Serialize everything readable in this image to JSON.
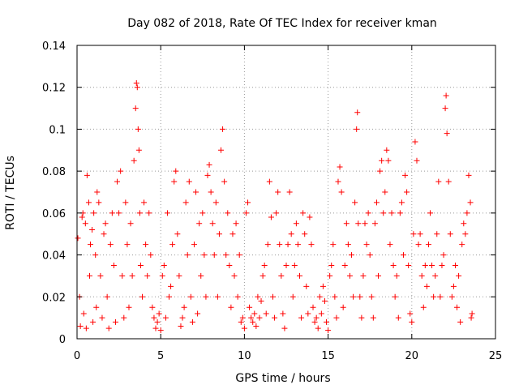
{
  "chart_data": {
    "type": "scatter",
    "title": "Day 082 of 2018, Rate Of TEC Index for receiver kman",
    "xlabel": "GPS time / hours",
    "ylabel": "ROTI / TECUs",
    "xlim": [
      0,
      25
    ],
    "ylim": [
      0,
      0.14
    ],
    "x_ticks": [
      0,
      5,
      10,
      15,
      20,
      25
    ],
    "x_tick_labels": [
      "0",
      "5",
      "10",
      "15",
      "20",
      "25"
    ],
    "y_ticks": [
      0,
      0.02,
      0.04,
      0.06,
      0.08,
      0.1,
      0.12,
      0.14
    ],
    "y_tick_labels": [
      "0",
      "0.02",
      "0.04",
      "0.06",
      "0.08",
      "0.1",
      "0.12",
      "0.14"
    ],
    "grid": true,
    "marker": "+",
    "series": [
      {
        "name": "ROTI",
        "color": "#ff0000",
        "points": [
          [
            0.05,
            0.048
          ],
          [
            0.15,
            0.02
          ],
          [
            0.2,
            0.006
          ],
          [
            0.3,
            0.058
          ],
          [
            0.35,
            0.06
          ],
          [
            0.4,
            0.012
          ],
          [
            0.5,
            0.055
          ],
          [
            0.55,
            0.005
          ],
          [
            0.6,
            0.078
          ],
          [
            0.7,
            0.065
          ],
          [
            0.75,
            0.03
          ],
          [
            0.8,
            0.045
          ],
          [
            0.9,
            0.052
          ],
          [
            0.95,
            0.008
          ],
          [
            1.0,
            0.06
          ],
          [
            1.1,
            0.04
          ],
          [
            1.15,
            0.015
          ],
          [
            1.2,
            0.07
          ],
          [
            1.3,
            0.065
          ],
          [
            1.4,
            0.03
          ],
          [
            1.5,
            0.01
          ],
          [
            1.6,
            0.05
          ],
          [
            1.7,
            0.055
          ],
          [
            1.8,
            0.02
          ],
          [
            1.9,
            0.005
          ],
          [
            2.0,
            0.045
          ],
          [
            2.1,
            0.06
          ],
          [
            2.2,
            0.035
          ],
          [
            2.3,
            0.008
          ],
          [
            2.4,
            0.075
          ],
          [
            2.5,
            0.06
          ],
          [
            2.6,
            0.08
          ],
          [
            2.7,
            0.03
          ],
          [
            2.8,
            0.01
          ],
          [
            2.9,
            0.065
          ],
          [
            3.0,
            0.045
          ],
          [
            3.1,
            0.015
          ],
          [
            3.2,
            0.055
          ],
          [
            3.3,
            0.03
          ],
          [
            3.4,
            0.085
          ],
          [
            3.5,
            0.11
          ],
          [
            3.55,
            0.122
          ],
          [
            3.6,
            0.12
          ],
          [
            3.65,
            0.1
          ],
          [
            3.7,
            0.09
          ],
          [
            3.75,
            0.06
          ],
          [
            3.8,
            0.035
          ],
          [
            3.9,
            0.02
          ],
          [
            4.0,
            0.065
          ],
          [
            4.1,
            0.045
          ],
          [
            4.2,
            0.03
          ],
          [
            4.3,
            0.06
          ],
          [
            4.4,
            0.04
          ],
          [
            4.5,
            0.015
          ],
          [
            4.6,
            0.01
          ],
          [
            4.7,
            0.005
          ],
          [
            4.8,
            0.008
          ],
          [
            4.9,
            0.012
          ],
          [
            5.0,
            0.004
          ],
          [
            5.1,
            0.03
          ],
          [
            5.2,
            0.035
          ],
          [
            5.3,
            0.01
          ],
          [
            5.4,
            0.06
          ],
          [
            5.5,
            0.02
          ],
          [
            5.6,
            0.025
          ],
          [
            5.7,
            0.045
          ],
          [
            5.8,
            0.075
          ],
          [
            5.9,
            0.08
          ],
          [
            6.0,
            0.05
          ],
          [
            6.1,
            0.03
          ],
          [
            6.2,
            0.006
          ],
          [
            6.3,
            0.01
          ],
          [
            6.4,
            0.015
          ],
          [
            6.5,
            0.065
          ],
          [
            6.6,
            0.04
          ],
          [
            6.7,
            0.075
          ],
          [
            6.8,
            0.02
          ],
          [
            6.9,
            0.008
          ],
          [
            7.0,
            0.045
          ],
          [
            7.1,
            0.07
          ],
          [
            7.2,
            0.012
          ],
          [
            7.3,
            0.055
          ],
          [
            7.4,
            0.03
          ],
          [
            7.5,
            0.06
          ],
          [
            7.6,
            0.04
          ],
          [
            7.7,
            0.02
          ],
          [
            7.8,
            0.078
          ],
          [
            7.9,
            0.083
          ],
          [
            8.0,
            0.07
          ],
          [
            8.1,
            0.055
          ],
          [
            8.2,
            0.04
          ],
          [
            8.3,
            0.065
          ],
          [
            8.4,
            0.02
          ],
          [
            8.5,
            0.05
          ],
          [
            8.6,
            0.09
          ],
          [
            8.7,
            0.1
          ],
          [
            8.8,
            0.075
          ],
          [
            8.9,
            0.04
          ],
          [
            9.0,
            0.06
          ],
          [
            9.1,
            0.035
          ],
          [
            9.2,
            0.015
          ],
          [
            9.3,
            0.05
          ],
          [
            9.4,
            0.03
          ],
          [
            9.5,
            0.055
          ],
          [
            9.6,
            0.02
          ],
          [
            9.7,
            0.04
          ],
          [
            9.8,
            0.008
          ],
          [
            9.9,
            0.01
          ],
          [
            10.0,
            0.005
          ],
          [
            10.1,
            0.06
          ],
          [
            10.2,
            0.065
          ],
          [
            10.3,
            0.015
          ],
          [
            10.4,
            0.01
          ],
          [
            10.5,
            0.008
          ],
          [
            10.6,
            0.012
          ],
          [
            10.7,
            0.006
          ],
          [
            10.8,
            0.02
          ],
          [
            10.9,
            0.01
          ],
          [
            11.0,
            0.018
          ],
          [
            11.1,
            0.03
          ],
          [
            11.2,
            0.035
          ],
          [
            11.3,
            0.012
          ],
          [
            11.4,
            0.045
          ],
          [
            11.5,
            0.075
          ],
          [
            11.6,
            0.058
          ],
          [
            11.7,
            0.02
          ],
          [
            11.8,
            0.01
          ],
          [
            11.9,
            0.06
          ],
          [
            12.0,
            0.07
          ],
          [
            12.1,
            0.045
          ],
          [
            12.2,
            0.03
          ],
          [
            12.3,
            0.012
          ],
          [
            12.4,
            0.005
          ],
          [
            12.5,
            0.035
          ],
          [
            12.6,
            0.045
          ],
          [
            12.7,
            0.07
          ],
          [
            12.8,
            0.05
          ],
          [
            12.9,
            0.02
          ],
          [
            13.0,
            0.035
          ],
          [
            13.1,
            0.055
          ],
          [
            13.2,
            0.045
          ],
          [
            13.3,
            0.03
          ],
          [
            13.4,
            0.01
          ],
          [
            13.5,
            0.06
          ],
          [
            13.6,
            0.05
          ],
          [
            13.7,
            0.025
          ],
          [
            13.8,
            0.012
          ],
          [
            13.9,
            0.058
          ],
          [
            14.0,
            0.045
          ],
          [
            14.1,
            0.015
          ],
          [
            14.2,
            0.008
          ],
          [
            14.3,
            0.01
          ],
          [
            14.4,
            0.005
          ],
          [
            14.5,
            0.02
          ],
          [
            14.6,
            0.012
          ],
          [
            14.7,
            0.025
          ],
          [
            14.8,
            0.018
          ],
          [
            14.9,
            0.008
          ],
          [
            15.0,
            0.004
          ],
          [
            15.1,
            0.03
          ],
          [
            15.2,
            0.035
          ],
          [
            15.3,
            0.045
          ],
          [
            15.4,
            0.02
          ],
          [
            15.5,
            0.01
          ],
          [
            15.6,
            0.075
          ],
          [
            15.7,
            0.082
          ],
          [
            15.8,
            0.07
          ],
          [
            15.9,
            0.015
          ],
          [
            16.0,
            0.035
          ],
          [
            16.1,
            0.055
          ],
          [
            16.2,
            0.045
          ],
          [
            16.3,
            0.03
          ],
          [
            16.4,
            0.04
          ],
          [
            16.5,
            0.02
          ],
          [
            16.6,
            0.065
          ],
          [
            16.7,
            0.1
          ],
          [
            16.75,
            0.108
          ],
          [
            16.8,
            0.055
          ],
          [
            16.9,
            0.02
          ],
          [
            17.0,
            0.01
          ],
          [
            17.1,
            0.03
          ],
          [
            17.2,
            0.055
          ],
          [
            17.3,
            0.045
          ],
          [
            17.4,
            0.06
          ],
          [
            17.5,
            0.04
          ],
          [
            17.6,
            0.02
          ],
          [
            17.7,
            0.01
          ],
          [
            17.8,
            0.055
          ],
          [
            17.9,
            0.065
          ],
          [
            18.0,
            0.03
          ],
          [
            18.1,
            0.08
          ],
          [
            18.2,
            0.085
          ],
          [
            18.3,
            0.06
          ],
          [
            18.4,
            0.07
          ],
          [
            18.5,
            0.09
          ],
          [
            18.6,
            0.085
          ],
          [
            18.7,
            0.045
          ],
          [
            18.8,
            0.06
          ],
          [
            18.9,
            0.035
          ],
          [
            19.0,
            0.02
          ],
          [
            19.1,
            0.03
          ],
          [
            19.2,
            0.01
          ],
          [
            19.3,
            0.06
          ],
          [
            19.4,
            0.065
          ],
          [
            19.5,
            0.04
          ],
          [
            19.6,
            0.078
          ],
          [
            19.7,
            0.07
          ],
          [
            19.8,
            0.035
          ],
          [
            19.9,
            0.012
          ],
          [
            20.0,
            0.008
          ],
          [
            20.1,
            0.05
          ],
          [
            20.2,
            0.094
          ],
          [
            20.3,
            0.085
          ],
          [
            20.4,
            0.045
          ],
          [
            20.5,
            0.05
          ],
          [
            20.6,
            0.03
          ],
          [
            20.7,
            0.015
          ],
          [
            20.8,
            0.035
          ],
          [
            20.9,
            0.025
          ],
          [
            21.0,
            0.045
          ],
          [
            21.1,
            0.06
          ],
          [
            21.2,
            0.035
          ],
          [
            21.3,
            0.02
          ],
          [
            21.4,
            0.03
          ],
          [
            21.5,
            0.05
          ],
          [
            21.6,
            0.075
          ],
          [
            21.7,
            0.02
          ],
          [
            21.8,
            0.035
          ],
          [
            21.9,
            0.04
          ],
          [
            22.0,
            0.11
          ],
          [
            22.05,
            0.116
          ],
          [
            22.1,
            0.098
          ],
          [
            22.2,
            0.075
          ],
          [
            22.3,
            0.05
          ],
          [
            22.4,
            0.02
          ],
          [
            22.5,
            0.025
          ],
          [
            22.6,
            0.035
          ],
          [
            22.7,
            0.015
          ],
          [
            22.8,
            0.03
          ],
          [
            22.9,
            0.008
          ],
          [
            23.0,
            0.045
          ],
          [
            23.1,
            0.055
          ],
          [
            23.2,
            0.05
          ],
          [
            23.3,
            0.06
          ],
          [
            23.4,
            0.078
          ],
          [
            23.5,
            0.065
          ],
          [
            23.55,
            0.01
          ],
          [
            23.6,
            0.012
          ]
        ]
      }
    ]
  }
}
